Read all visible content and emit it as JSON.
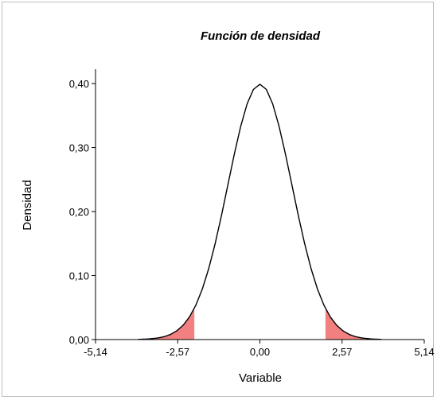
{
  "chart_data": {
    "type": "line",
    "title": "Función de densidad",
    "xlabel": "Variable",
    "ylabel": "Densidad",
    "xlim": [
      -5.14,
      5.14
    ],
    "ylim": [
      0,
      0.42
    ],
    "x_ticks": [
      -5.14,
      -2.57,
      0.0,
      2.57,
      5.14
    ],
    "x_tick_labels": [
      "-5,14",
      "-2,57",
      "0,00",
      "2,57",
      "5,14"
    ],
    "y_ticks": [
      0.0,
      0.1,
      0.2,
      0.3,
      0.4
    ],
    "y_tick_labels": [
      "0,00",
      "0,10",
      "0,20",
      "0,30",
      "0,40"
    ],
    "series": [
      {
        "x": [
          -3.8,
          -3.5,
          -3.2,
          -3.0,
          -2.8,
          -2.6,
          -2.4,
          -2.2,
          -2.0,
          -1.8,
          -1.6,
          -1.4,
          -1.2,
          -1.0,
          -0.8,
          -0.6,
          -0.4,
          -0.2,
          0.0,
          0.2,
          0.4,
          0.6,
          0.8,
          1.0,
          1.2,
          1.4,
          1.6,
          1.8,
          2.0,
          2.2,
          2.4,
          2.6,
          2.8,
          3.0,
          3.2,
          3.5,
          3.8
        ],
        "values": [
          0.0003,
          0.0009,
          0.0024,
          0.0044,
          0.0079,
          0.0136,
          0.0224,
          0.0355,
          0.054,
          0.079,
          0.1109,
          0.1497,
          0.1942,
          0.242,
          0.2897,
          0.3332,
          0.3683,
          0.391,
          0.3989,
          0.391,
          0.3683,
          0.3332,
          0.2897,
          0.242,
          0.1942,
          0.1497,
          0.1109,
          0.079,
          0.054,
          0.0355,
          0.0224,
          0.0136,
          0.0079,
          0.0044,
          0.0024,
          0.0009,
          0.0003
        ],
        "color": "#000000"
      }
    ],
    "shaded_regions": [
      {
        "from": -3.8,
        "to": -2.05,
        "color": "#f28080"
      },
      {
        "from": 2.05,
        "to": 3.8,
        "color": "#f28080"
      }
    ],
    "grid": false,
    "legend": "none"
  }
}
